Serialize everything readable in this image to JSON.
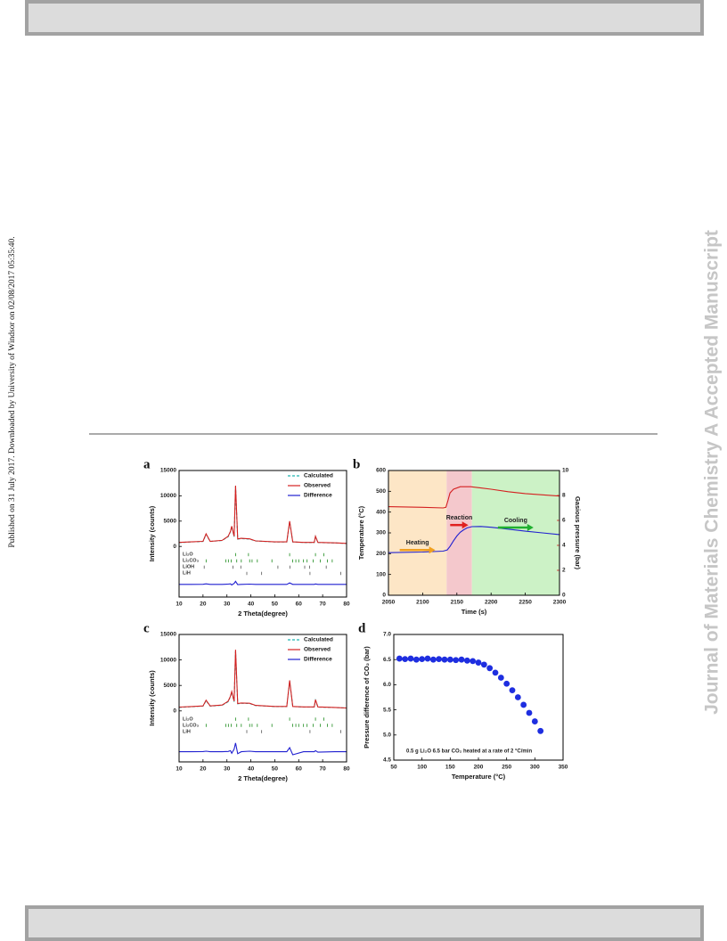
{
  "side_note": "Published on 31 July 2017. Downloaded by University of Windsor on 02/08/2017 05:35:40.",
  "watermark": "Journal of Materials Chemistry A Accepted Manuscript",
  "chart_data": [
    {
      "type": "line",
      "panel_label": "a",
      "xlabel": "2 Theta(degree)",
      "ylabel": "Intensity (counts)",
      "xlim": [
        10,
        80
      ],
      "xticks": [
        10,
        20,
        30,
        40,
        50,
        60,
        70,
        80
      ],
      "ylim": [
        -10000,
        15000
      ],
      "yticks": [
        0,
        5000,
        10000,
        15000
      ],
      "legend": "upper right",
      "x": [
        10,
        15,
        20,
        21.3,
        23,
        28,
        30.5,
        31.5,
        32,
        33,
        33.6,
        34.5,
        36,
        39.5,
        42,
        50,
        55,
        56.2,
        57.5,
        62,
        66.5,
        67,
        68,
        75,
        80
      ],
      "series": [
        {
          "name": "Calculated",
          "color": "#1fb5b0",
          "style": "dashed",
          "values": [
            750,
            880,
            980,
            2400,
            980,
            1180,
            1900,
            2900,
            3900,
            1900,
            11800,
            1450,
            1550,
            1450,
            1080,
            880,
            880,
            4900,
            880,
            780,
            780,
            1950,
            780,
            680,
            580
          ]
        },
        {
          "name": "Observed",
          "color": "#d42020",
          "values": [
            800,
            900,
            1000,
            2500,
            1000,
            1200,
            2000,
            3000,
            4000,
            2000,
            12000,
            1500,
            1600,
            1500,
            1100,
            900,
            900,
            5000,
            900,
            800,
            800,
            2000,
            800,
            700,
            600
          ]
        },
        {
          "name": "Difference",
          "color": "#1f1fd0",
          "values": [
            -7500,
            -7500,
            -7480,
            -7400,
            -7500,
            -7500,
            -7450,
            -7400,
            -7600,
            -7300,
            -6900,
            -7550,
            -7500,
            -7450,
            -7500,
            -7500,
            -7500,
            -7200,
            -7500,
            -7500,
            -7500,
            -7420,
            -7500,
            -7500,
            -7500
          ]
        }
      ],
      "phases": [
        {
          "name": "Li₂O",
          "color": "#1a8a1a",
          "positions": [
            33.6,
            39,
            56.2,
            67,
            70.5
          ]
        },
        {
          "name": "Li₂CO₃",
          "color": "#1a8a1a",
          "positions": [
            21.3,
            29.5,
            30.6,
            31.8,
            34.1,
            36,
            39.5,
            40.5,
            42.7,
            48.8,
            57.5,
            58.8,
            60,
            62,
            63.5,
            66,
            69,
            72,
            74
          ]
        },
        {
          "name": "LiOH",
          "color": "#555555",
          "positions": [
            20.5,
            32.5,
            35.8,
            51.3,
            56.3,
            62.5,
            64.5,
            71.5
          ]
        },
        {
          "name": "LiH",
          "color": "#555555",
          "positions": [
            38.3,
            44.5,
            64.7,
            77.6
          ]
        }
      ]
    },
    {
      "type": "line",
      "panel_label": "b",
      "xlabel": "Time (s)",
      "ylabel": "Temperature (°C)",
      "ylabel_color": "#2020c8",
      "y2label": "Gasious pressure (bar)",
      "y2label_color": "#d42020",
      "xlim": [
        2050,
        2300
      ],
      "xticks": [
        2050,
        2100,
        2150,
        2200,
        2250,
        2300
      ],
      "ylim": [
        0,
        600
      ],
      "yticks": [
        0,
        100,
        200,
        300,
        400,
        500,
        600
      ],
      "y2lim": [
        0,
        10
      ],
      "y2ticks": [
        0,
        2,
        4,
        6,
        8,
        10
      ],
      "regions": [
        {
          "label": "Heating",
          "xlim": [
            2050,
            2135
          ],
          "color": "#fde6c6",
          "arrow_color": "#f0a020"
        },
        {
          "label": "Reaction",
          "xlim": [
            2135,
            2172
          ],
          "color": "#f4c8cc",
          "arrow_color": "#e02020"
        },
        {
          "label": "Cooling",
          "xlim": [
            2172,
            2300
          ],
          "color": "#ccf2c6",
          "arrow_color": "#20b030"
        }
      ],
      "series": [
        {
          "name": "Temperature",
          "color": "#2020d0",
          "x": [
            2050,
            2100,
            2130,
            2136,
            2140,
            2145,
            2150,
            2155,
            2160,
            2165,
            2172,
            2185,
            2200,
            2225,
            2250,
            2275,
            2300
          ],
          "values": [
            205,
            208,
            212,
            218,
            235,
            262,
            285,
            303,
            315,
            324,
            330,
            331,
            327,
            318,
            308,
            300,
            292
          ]
        },
        {
          "name": "Gasious pressure",
          "color": "#d42020",
          "axis": "y2",
          "x": [
            2050,
            2100,
            2130,
            2134,
            2137,
            2140,
            2145,
            2155,
            2170,
            2185,
            2200,
            2225,
            2250,
            2275,
            2300
          ],
          "values": [
            7.1,
            7.05,
            7.0,
            7.05,
            7.6,
            8.2,
            8.5,
            8.7,
            8.7,
            8.6,
            8.5,
            8.3,
            8.15,
            8.05,
            7.95
          ]
        }
      ]
    },
    {
      "type": "line",
      "panel_label": "c",
      "xlabel": "2 Theta(degree)",
      "ylabel": "Intensity (counts)",
      "xlim": [
        10,
        80
      ],
      "xticks": [
        10,
        20,
        30,
        40,
        50,
        60,
        70,
        80
      ],
      "ylim": [
        -10000,
        15000
      ],
      "yticks": [
        0,
        5000,
        10000,
        15000
      ],
      "legend": "upper right",
      "x": [
        10,
        15,
        20,
        21.3,
        23,
        28,
        30.5,
        31.5,
        32,
        33,
        33.6,
        34.5,
        36,
        39.5,
        42,
        50,
        55,
        56.2,
        57.5,
        62,
        66.5,
        67,
        68,
        75,
        80
      ],
      "series": [
        {
          "name": "Calculated",
          "color": "#1fb5b0",
          "style": "dashed",
          "values": [
            700,
            820,
            950,
            2000,
            950,
            1100,
            1800,
            2800,
            3700,
            1800,
            11700,
            1400,
            1500,
            1450,
            1050,
            850,
            850,
            5800,
            850,
            760,
            760,
            2100,
            760,
            660,
            560
          ]
        },
        {
          "name": "Observed",
          "color": "#d42020",
          "values": [
            750,
            850,
            980,
            2100,
            980,
            1150,
            1900,
            2900,
            3800,
            1900,
            12000,
            1450,
            1550,
            1500,
            1080,
            880,
            880,
            6000,
            880,
            780,
            780,
            2200,
            780,
            680,
            580
          ]
        },
        {
          "name": "Difference",
          "color": "#1f1fd0",
          "values": [
            -8000,
            -8000,
            -7980,
            -7900,
            -8000,
            -8000,
            -7950,
            -7800,
            -8300,
            -7500,
            -6300,
            -8400,
            -8000,
            -7900,
            -8000,
            -8000,
            -8000,
            -7200,
            -8600,
            -8000,
            -8000,
            -7800,
            -8100,
            -8000,
            -8000
          ]
        }
      ],
      "phases": [
        {
          "name": "Li₂O",
          "color": "#1a8a1a",
          "positions": [
            33.6,
            39,
            56.2,
            67,
            70.5
          ]
        },
        {
          "name": "Li₂CO₃",
          "color": "#1a8a1a",
          "positions": [
            21.3,
            29.5,
            30.6,
            31.8,
            34.1,
            36,
            39.5,
            40.5,
            42.7,
            48.8,
            57.5,
            58.8,
            60,
            62,
            63.5,
            66,
            69,
            72,
            74
          ]
        },
        {
          "name": "LiH",
          "color": "#555555",
          "positions": [
            38.3,
            44.5,
            64.7,
            77.6
          ]
        }
      ]
    },
    {
      "type": "scatter",
      "panel_label": "d",
      "xlabel": "Temperature (°C)",
      "ylabel": "Pressure difference of CO₂ (bar)",
      "annotation": "0.5 g Li₂O  6.5 bar CO₂ heated at a rate of 2 °C/min",
      "xlim": [
        50,
        350
      ],
      "xticks": [
        50,
        100,
        150,
        200,
        250,
        300,
        350
      ],
      "ylim": [
        4.5,
        7.0
      ],
      "yticks": [
        {
          "value": 4.5,
          "label": "4.5"
        },
        {
          "value": 5,
          "label": "5.0"
        },
        {
          "value": 5.5,
          "label": "5.5"
        },
        {
          "value": 6,
          "label": "6.0"
        },
        {
          "value": 6.5,
          "label": "6.5"
        },
        {
          "value": 7,
          "label": "7.0"
        }
      ],
      "x": [
        60,
        70,
        80,
        90,
        100,
        110,
        120,
        130,
        140,
        150,
        160,
        170,
        180,
        190,
        200,
        210,
        220,
        230,
        240,
        250,
        260,
        270,
        280,
        290,
        300,
        310
      ],
      "series": [
        {
          "name": "Pressure difference",
          "color": "#1e2ee0",
          "values": [
            6.52,
            6.51,
            6.52,
            6.5,
            6.51,
            6.52,
            6.5,
            6.51,
            6.5,
            6.5,
            6.49,
            6.5,
            6.48,
            6.47,
            6.44,
            6.4,
            6.33,
            6.24,
            6.14,
            6.02,
            5.89,
            5.75,
            5.6,
            5.44,
            5.27,
            5.08
          ]
        }
      ]
    }
  ]
}
